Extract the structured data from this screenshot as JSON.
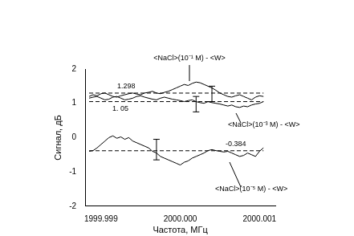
{
  "chart_data": {
    "type": "line",
    "x_label": "Частота, МГц",
    "y_label": "Сигнал, дБ",
    "x": [
      1999.99885,
      1999.9989,
      1999.99895,
      1999.999,
      1999.99905,
      1999.9991,
      1999.99915,
      1999.9992,
      1999.99925,
      1999.9993,
      1999.99935,
      1999.9994,
      1999.99945,
      1999.9995,
      1999.99955,
      1999.9996,
      1999.99965,
      1999.9997,
      1999.99975,
      1999.9998,
      1999.99985,
      1999.9999,
      1999.99995,
      2000.0,
      2000.00005,
      2000.0001,
      2000.00015,
      2000.0002,
      2000.00025,
      2000.0003,
      2000.00035,
      2000.0004,
      2000.00045,
      2000.0005,
      2000.00055,
      2000.0006,
      2000.00065,
      2000.0007,
      2000.00075,
      2000.0008,
      2000.00085,
      2000.0009,
      2000.00095,
      2000.001,
      2000.00105
    ],
    "series": [
      {
        "name": "<NaCl>(10⁻¹ M) - <W>",
        "color": "#000000",
        "values": [
          1.2,
          1.25,
          1.22,
          1.28,
          1.3,
          1.25,
          1.2,
          1.18,
          1.22,
          1.25,
          1.28,
          1.3,
          1.27,
          1.25,
          1.3,
          1.32,
          1.35,
          1.3,
          1.28,
          1.32,
          1.35,
          1.4,
          1.45,
          1.5,
          1.55,
          1.52,
          1.58,
          1.62,
          1.6,
          1.55,
          1.5,
          1.45,
          1.38,
          1.3,
          1.25,
          1.2,
          1.18,
          1.22,
          1.25,
          1.2,
          1.15,
          1.1,
          1.18,
          1.22,
          1.2
        ],
        "error_bars": [
          {
            "x": 2000.0004,
            "low": 1.05,
            "high": 1.5
          }
        ]
      },
      {
        "name": "<NaCl>(10⁻³ M) - <W>",
        "color": "#000000",
        "values": [
          1.15,
          1.18,
          1.2,
          1.15,
          1.1,
          1.12,
          1.18,
          1.2,
          1.15,
          1.1,
          1.12,
          1.15,
          1.2,
          1.22,
          1.18,
          1.15,
          1.12,
          1.1,
          1.15,
          1.18,
          1.15,
          1.12,
          1.1,
          1.08,
          1.05,
          1.08,
          1.1,
          1.05,
          1.02,
          1.0,
          1.05,
          1.02,
          1.0,
          0.98,
          0.95,
          0.92,
          0.95,
          0.9,
          0.88,
          0.92,
          0.9,
          0.95,
          0.98,
          1.0,
          1.05
        ],
        "error_bars": [
          {
            "x": 2000.0002,
            "low": 0.75,
            "high": 1.2
          }
        ]
      },
      {
        "name": "<NaCl>(10⁻⁵ M) - <W>",
        "color": "#000000",
        "values": [
          -0.4,
          -0.38,
          -0.3,
          -0.2,
          -0.1,
          0.0,
          0.05,
          -0.02,
          0.02,
          -0.05,
          0.0,
          -0.1,
          -0.15,
          -0.2,
          -0.25,
          -0.3,
          -0.4,
          -0.45,
          -0.55,
          -0.6,
          -0.65,
          -0.7,
          -0.75,
          -0.8,
          -0.72,
          -0.68,
          -0.6,
          -0.55,
          -0.5,
          -0.45,
          -0.38,
          -0.35,
          -0.38,
          -0.4,
          -0.42,
          -0.4,
          -0.45,
          -0.5,
          -0.55,
          -0.52,
          -0.45,
          -0.5,
          -0.55,
          -0.4,
          -0.3
        ],
        "error_bars": [
          {
            "x": 1999.9997,
            "low": -0.65,
            "high": -0.05
          }
        ]
      }
    ],
    "reference_lines": [
      {
        "value": 1.298,
        "label": "1.298",
        "line_style": "dashed"
      },
      {
        "value": 1.05,
        "label": "1. 05",
        "line_style": "dashed"
      },
      {
        "value": -0.384,
        "label": "-0.384",
        "line_style": "dashed"
      }
    ],
    "xlim": [
      1999.9988,
      2000.0012
    ],
    "xticks": [
      1999.999,
      {
        "value": 2000,
        "label": "2000.000"
      },
      2000.001
    ],
    "ylim": [
      -2,
      2
    ],
    "yticks": [
      -2,
      -1,
      0,
      1,
      2
    ],
    "grid": false
  }
}
